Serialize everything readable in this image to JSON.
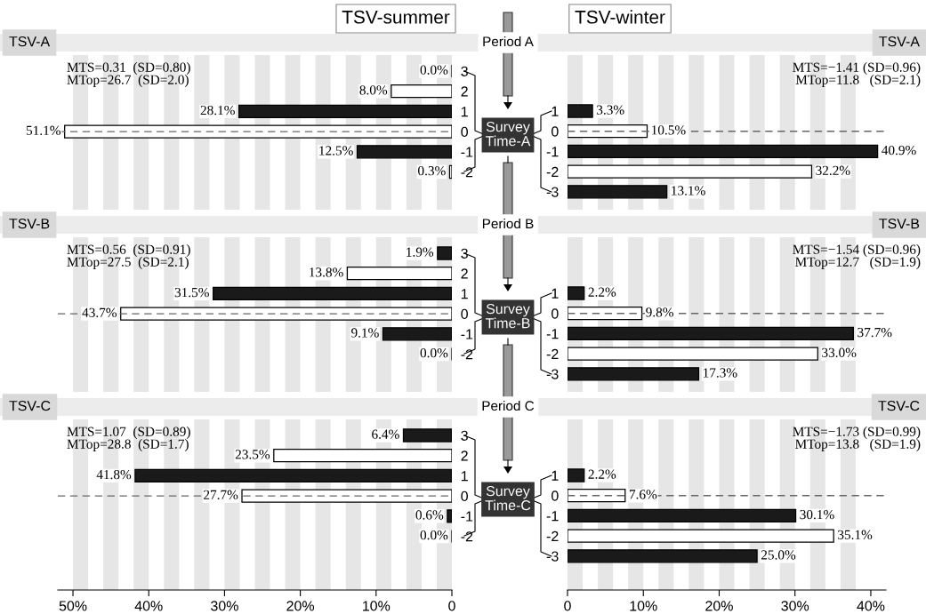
{
  "chart_data": [
    {
      "type": "bar",
      "orientation": "horizontal",
      "title": "TSV-A",
      "annotations": [
        "MTS=0.31  (SD=0.80)",
        "MTop=26.7  (SD=2.0)"
      ],
      "categories": [
        "3",
        "2",
        "1",
        "0",
        "-1",
        "-2"
      ],
      "values": [
        0.0,
        8.0,
        28.1,
        51.1,
        12.5,
        0.3
      ],
      "colors": [
        "#000000",
        "#ffffff",
        "#1a1a1a",
        "#ffffff",
        "#1a1a1a",
        "#ffffff"
      ],
      "value_labels": [
        "0.0%",
        "8.0%",
        "28.1%",
        "51.1%",
        "12.5%",
        "0.3%"
      ],
      "xlim": [
        52,
        0
      ],
      "tick_labels": "y",
      "ref_lines": [
        {
          "axis": "y",
          "value": "0",
          "color": "#666666",
          "line_style": "dashed"
        }
      ],
      "bands": [
        {
          "axis": "x",
          "from": 50,
          "to": 48,
          "color": "#e6e6e6"
        },
        {
          "axis": "x",
          "from": 46,
          "to": 44,
          "color": "#e6e6e6"
        },
        {
          "axis": "x",
          "from": 42,
          "to": 40,
          "color": "#e6e6e6"
        },
        {
          "axis": "x",
          "from": 38,
          "to": 36,
          "color": "#e6e6e6"
        },
        {
          "axis": "x",
          "from": 34,
          "to": 32,
          "color": "#e6e6e6"
        },
        {
          "axis": "x",
          "from": 30,
          "to": 28,
          "color": "#e6e6e6"
        },
        {
          "axis": "x",
          "from": 26,
          "to": 24,
          "color": "#e6e6e6"
        },
        {
          "axis": "x",
          "from": 22,
          "to": 20,
          "color": "#e6e6e6"
        },
        {
          "axis": "x",
          "from": 18,
          "to": 16,
          "color": "#e6e6e6"
        },
        {
          "axis": "x",
          "from": 14,
          "to": 12,
          "color": "#e6e6e6"
        },
        {
          "axis": "x",
          "from": 10,
          "to": 8,
          "color": "#e6e6e6"
        },
        {
          "axis": "x",
          "from": 6,
          "to": 4,
          "color": "#e6e6e6"
        },
        {
          "axis": "x",
          "from": 2,
          "to": 0,
          "color": "#e6e6e6"
        }
      ]
    },
    {
      "type": "bar",
      "orientation": "horizontal",
      "title": "TSV-A",
      "annotations": [
        "MTS=−1.41 (SD=0.96)",
        "MTop=11.8   (SD=2.1)"
      ],
      "categories": [
        "1",
        "0",
        "-1",
        "-2",
        "-3"
      ],
      "values": [
        3.3,
        10.5,
        40.9,
        32.2,
        13.1
      ],
      "colors": [
        "#1a1a1a",
        "#ffffff",
        "#1a1a1a",
        "#ffffff",
        "#1a1a1a"
      ],
      "value_labels": [
        "3.3%",
        "10.5%",
        "40.9%",
        "32.2%",
        "13.1%"
      ],
      "xlim": [
        0,
        42
      ],
      "tick_labels": "y",
      "ref_lines": [
        {
          "axis": "y",
          "value": "0",
          "color": "#666666",
          "line_style": "dashed"
        }
      ],
      "bands": [
        {
          "axis": "x",
          "from": 0,
          "to": 2,
          "color": "#e6e6e6"
        },
        {
          "axis": "x",
          "from": 4,
          "to": 6,
          "color": "#e6e6e6"
        },
        {
          "axis": "x",
          "from": 8,
          "to": 10,
          "color": "#e6e6e6"
        },
        {
          "axis": "x",
          "from": 12,
          "to": 14,
          "color": "#e6e6e6"
        },
        {
          "axis": "x",
          "from": 16,
          "to": 18,
          "color": "#e6e6e6"
        },
        {
          "axis": "x",
          "from": 20,
          "to": 22,
          "color": "#e6e6e6"
        },
        {
          "axis": "x",
          "from": 24,
          "to": 26,
          "color": "#e6e6e6"
        },
        {
          "axis": "x",
          "from": 28,
          "to": 30,
          "color": "#e6e6e6"
        },
        {
          "axis": "x",
          "from": 32,
          "to": 34,
          "color": "#e6e6e6"
        },
        {
          "axis": "x",
          "from": 36,
          "to": 38,
          "color": "#e6e6e6"
        }
      ]
    },
    {
      "type": "bar",
      "orientation": "horizontal",
      "title": "TSV-B",
      "annotations": [
        "MTS=0.56  (SD=0.91)",
        "MTop=27.5  (SD=2.1)"
      ],
      "categories": [
        "3",
        "2",
        "1",
        "0",
        "-1",
        "-2"
      ],
      "values": [
        1.9,
        13.8,
        31.5,
        43.7,
        9.1,
        0.0
      ],
      "colors": [
        "#1a1a1a",
        "#ffffff",
        "#1a1a1a",
        "#ffffff",
        "#1a1a1a",
        "#000000"
      ],
      "value_labels": [
        "1.9%",
        "13.8%",
        "31.5%",
        "43.7%",
        "9.1%",
        "0.0%"
      ],
      "xlim": [
        52,
        0
      ],
      "tick_labels": "y",
      "ref_lines": [
        {
          "axis": "y",
          "value": "0",
          "color": "#666666",
          "line_style": "dashed"
        }
      ],
      "bands": [
        {
          "axis": "x",
          "from": 50,
          "to": 48,
          "color": "#e6e6e6"
        },
        {
          "axis": "x",
          "from": 46,
          "to": 44,
          "color": "#e6e6e6"
        },
        {
          "axis": "x",
          "from": 42,
          "to": 40,
          "color": "#e6e6e6"
        },
        {
          "axis": "x",
          "from": 38,
          "to": 36,
          "color": "#e6e6e6"
        },
        {
          "axis": "x",
          "from": 34,
          "to": 32,
          "color": "#e6e6e6"
        },
        {
          "axis": "x",
          "from": 30,
          "to": 28,
          "color": "#e6e6e6"
        },
        {
          "axis": "x",
          "from": 26,
          "to": 24,
          "color": "#e6e6e6"
        },
        {
          "axis": "x",
          "from": 22,
          "to": 20,
          "color": "#e6e6e6"
        },
        {
          "axis": "x",
          "from": 18,
          "to": 16,
          "color": "#e6e6e6"
        },
        {
          "axis": "x",
          "from": 14,
          "to": 12,
          "color": "#e6e6e6"
        },
        {
          "axis": "x",
          "from": 10,
          "to": 8,
          "color": "#e6e6e6"
        },
        {
          "axis": "x",
          "from": 6,
          "to": 4,
          "color": "#e6e6e6"
        },
        {
          "axis": "x",
          "from": 2,
          "to": 0,
          "color": "#e6e6e6"
        }
      ]
    },
    {
      "type": "bar",
      "orientation": "horizontal",
      "title": "TSV-B",
      "annotations": [
        "MTS=−1.54 (SD=0.96)",
        "MTop=12.7   (SD=1.9)"
      ],
      "categories": [
        "1",
        "0",
        "-1",
        "-2",
        "-3"
      ],
      "values": [
        2.2,
        9.8,
        37.7,
        33.0,
        17.3
      ],
      "colors": [
        "#1a1a1a",
        "#ffffff",
        "#1a1a1a",
        "#ffffff",
        "#1a1a1a"
      ],
      "value_labels": [
        "2.2%",
        "9.8%",
        "37.7%",
        "33.0%",
        "17.3%"
      ],
      "xlim": [
        0,
        42
      ],
      "tick_labels": "y",
      "ref_lines": [
        {
          "axis": "y",
          "value": "0",
          "color": "#666666",
          "line_style": "dashed"
        }
      ],
      "bands": [
        {
          "axis": "x",
          "from": 0,
          "to": 2,
          "color": "#e6e6e6"
        },
        {
          "axis": "x",
          "from": 4,
          "to": 6,
          "color": "#e6e6e6"
        },
        {
          "axis": "x",
          "from": 8,
          "to": 10,
          "color": "#e6e6e6"
        },
        {
          "axis": "x",
          "from": 12,
          "to": 14,
          "color": "#e6e6e6"
        },
        {
          "axis": "x",
          "from": 16,
          "to": 18,
          "color": "#e6e6e6"
        },
        {
          "axis": "x",
          "from": 20,
          "to": 22,
          "color": "#e6e6e6"
        },
        {
          "axis": "x",
          "from": 24,
          "to": 26,
          "color": "#e6e6e6"
        },
        {
          "axis": "x",
          "from": 28,
          "to": 30,
          "color": "#e6e6e6"
        },
        {
          "axis": "x",
          "from": 32,
          "to": 34,
          "color": "#e6e6e6"
        },
        {
          "axis": "x",
          "from": 36,
          "to": 38,
          "color": "#e6e6e6"
        }
      ]
    },
    {
      "type": "bar",
      "orientation": "horizontal",
      "title": "TSV-C",
      "annotations": [
        "MTS=1.07  (SD=0.89)",
        "MTop=28.8  (SD=1.7)"
      ],
      "categories": [
        "3",
        "2",
        "1",
        "0",
        "-1",
        "-2"
      ],
      "values": [
        6.4,
        23.5,
        41.8,
        27.7,
        0.6,
        0.0
      ],
      "colors": [
        "#1a1a1a",
        "#ffffff",
        "#1a1a1a",
        "#ffffff",
        "#1a1a1a",
        "#000000"
      ],
      "value_labels": [
        "6.4%",
        "23.5%",
        "41.8%",
        "27.7%",
        "0.6%",
        "0.0%"
      ],
      "xlim": [
        52,
        0
      ],
      "xticks": [
        {
          "value": 50,
          "label": "50%"
        },
        {
          "value": 40,
          "label": "40%"
        },
        {
          "value": 30,
          "label": "30%"
        },
        {
          "value": 20,
          "label": "20%"
        },
        {
          "value": 10,
          "label": "10%"
        },
        0
      ],
      "ref_lines": [
        {
          "axis": "y",
          "value": "0",
          "color": "#666666",
          "line_style": "dashed"
        }
      ],
      "bands": [
        {
          "axis": "x",
          "from": 50,
          "to": 48,
          "color": "#e6e6e6"
        },
        {
          "axis": "x",
          "from": 46,
          "to": 44,
          "color": "#e6e6e6"
        },
        {
          "axis": "x",
          "from": 42,
          "to": 40,
          "color": "#e6e6e6"
        },
        {
          "axis": "x",
          "from": 38,
          "to": 36,
          "color": "#e6e6e6"
        },
        {
          "axis": "x",
          "from": 34,
          "to": 32,
          "color": "#e6e6e6"
        },
        {
          "axis": "x",
          "from": 30,
          "to": 28,
          "color": "#e6e6e6"
        },
        {
          "axis": "x",
          "from": 26,
          "to": 24,
          "color": "#e6e6e6"
        },
        {
          "axis": "x",
          "from": 22,
          "to": 20,
          "color": "#e6e6e6"
        },
        {
          "axis": "x",
          "from": 18,
          "to": 16,
          "color": "#e6e6e6"
        },
        {
          "axis": "x",
          "from": 14,
          "to": 12,
          "color": "#e6e6e6"
        },
        {
          "axis": "x",
          "from": 10,
          "to": 8,
          "color": "#e6e6e6"
        },
        {
          "axis": "x",
          "from": 6,
          "to": 4,
          "color": "#e6e6e6"
        },
        {
          "axis": "x",
          "from": 2,
          "to": 0,
          "color": "#e6e6e6"
        }
      ]
    },
    {
      "type": "bar",
      "orientation": "horizontal",
      "title": "TSV-C",
      "annotations": [
        "MTS=−1.73 (SD=0.99)",
        "MTop=13.8   (SD=1.9)"
      ],
      "categories": [
        "1",
        "0",
        "-1",
        "-2",
        "-3"
      ],
      "values": [
        2.2,
        7.6,
        30.1,
        35.1,
        25.0
      ],
      "colors": [
        "#1a1a1a",
        "#ffffff",
        "#1a1a1a",
        "#ffffff",
        "#1a1a1a"
      ],
      "value_labels": [
        "2.2%",
        "7.6%",
        "30.1%",
        "35.1%",
        "25.0%"
      ],
      "xlim": [
        0,
        42
      ],
      "xticks": [
        0,
        {
          "value": 10,
          "label": "10%"
        },
        {
          "value": 20,
          "label": "20%"
        },
        {
          "value": 30,
          "label": "30%"
        },
        {
          "value": 40,
          "label": "40%"
        }
      ],
      "ref_lines": [
        {
          "axis": "y",
          "value": "0",
          "color": "#666666",
          "line_style": "dashed"
        }
      ],
      "bands": [
        {
          "axis": "x",
          "from": 0,
          "to": 2,
          "color": "#e6e6e6"
        },
        {
          "axis": "x",
          "from": 4,
          "to": 6,
          "color": "#e6e6e6"
        },
        {
          "axis": "x",
          "from": 8,
          "to": 10,
          "color": "#e6e6e6"
        },
        {
          "axis": "x",
          "from": 12,
          "to": 14,
          "color": "#e6e6e6"
        },
        {
          "axis": "x",
          "from": 16,
          "to": 18,
          "color": "#e6e6e6"
        },
        {
          "axis": "x",
          "from": 20,
          "to": 22,
          "color": "#e6e6e6"
        },
        {
          "axis": "x",
          "from": 24,
          "to": 26,
          "color": "#e6e6e6"
        },
        {
          "axis": "x",
          "from": 28,
          "to": 30,
          "color": "#e6e6e6"
        },
        {
          "axis": "x",
          "from": 32,
          "to": 34,
          "color": "#e6e6e6"
        },
        {
          "axis": "x",
          "from": 36,
          "to": 38,
          "color": "#e6e6e6"
        }
      ]
    },
    {
      "type": "other",
      "annotations": [
        "TSV-summer",
        "TSV-winter",
        "Period A",
        "Survey\nTime-A",
        "Period B",
        "Survey\nTime-B",
        "Period C",
        "Survey\nTime-C"
      ]
    }
  ]
}
